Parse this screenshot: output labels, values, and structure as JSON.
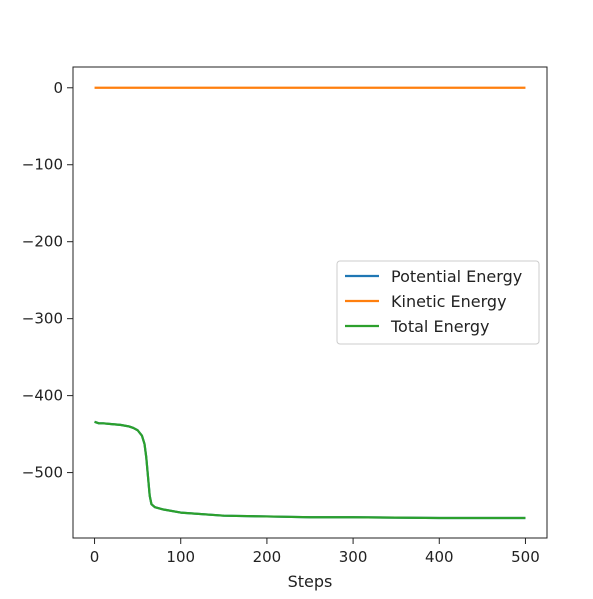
{
  "chart_data": {
    "type": "line",
    "title": "",
    "xlabel": "Steps",
    "ylabel": "",
    "xlim": [
      -25,
      525
    ],
    "ylim": [
      -585,
      27
    ],
    "xticks": [
      0,
      100,
      200,
      300,
      400,
      500
    ],
    "yticks": [
      0,
      -100,
      -200,
      -300,
      -400,
      -500
    ],
    "grid": false,
    "legend_position": "right",
    "series": [
      {
        "name": "Potential Energy",
        "color": "#1f77b4",
        "x": [
          0,
          5,
          10,
          20,
          30,
          40,
          45,
          50,
          55,
          58,
          60,
          62,
          64,
          66,
          68,
          70,
          80,
          100,
          150,
          200,
          250,
          300,
          400,
          500
        ],
        "y": [
          -434,
          -436,
          -436,
          -437,
          -438,
          -440,
          -442,
          -445,
          -452,
          -463,
          -480,
          -505,
          -530,
          -541,
          -543,
          -545,
          -548,
          -552,
          -556,
          -557,
          -558,
          -558,
          -559,
          -559
        ]
      },
      {
        "name": "Kinetic Energy",
        "color": "#ff7f0e",
        "x": [
          0,
          100,
          200,
          300,
          400,
          500
        ],
        "y": [
          0,
          0,
          0,
          0,
          0,
          0
        ]
      },
      {
        "name": "Total Energy",
        "color": "#2ca02c",
        "x": [
          0,
          5,
          10,
          20,
          30,
          40,
          45,
          50,
          55,
          58,
          60,
          62,
          64,
          66,
          68,
          70,
          80,
          100,
          150,
          200,
          250,
          300,
          400,
          500
        ],
        "y": [
          -434,
          -436,
          -436,
          -437,
          -438,
          -440,
          -442,
          -445,
          -452,
          -463,
          -480,
          -505,
          -530,
          -541,
          -543,
          -545,
          -548,
          -552,
          -556,
          -557,
          -558,
          -558,
          -559,
          -559
        ]
      }
    ]
  }
}
